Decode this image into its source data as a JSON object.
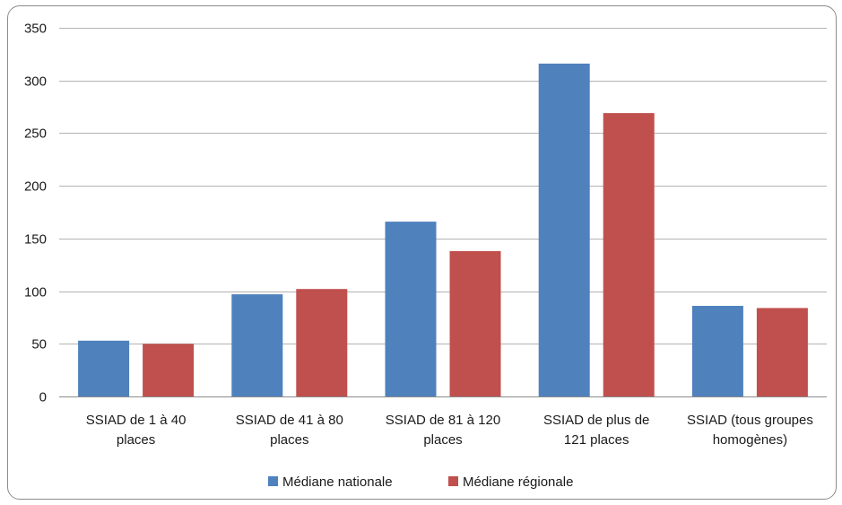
{
  "chart_data": {
    "type": "bar",
    "title": "",
    "xlabel": "",
    "ylabel": "",
    "categories": [
      [
        "SSIAD de 1 à 40",
        "places"
      ],
      [
        "SSIAD de 41 à 80",
        "places"
      ],
      [
        "SSIAD de 81 à 120",
        "places"
      ],
      [
        "SSIAD de plus de",
        "121 places"
      ],
      [
        "SSIAD (tous groupes",
        "homogènes)"
      ]
    ],
    "series": [
      {
        "name": "Médiane nationale",
        "color": "#4f81bd",
        "values": [
          53,
          97,
          166,
          316,
          86
        ]
      },
      {
        "name": "Médiane régionale",
        "color": "#c0504d",
        "values": [
          50,
          102,
          138,
          269,
          84
        ]
      }
    ],
    "ylim": [
      0,
      350
    ],
    "yticks": [
      0,
      50,
      100,
      150,
      200,
      250,
      300,
      350
    ],
    "grid": true,
    "legend_position": "bottom"
  }
}
